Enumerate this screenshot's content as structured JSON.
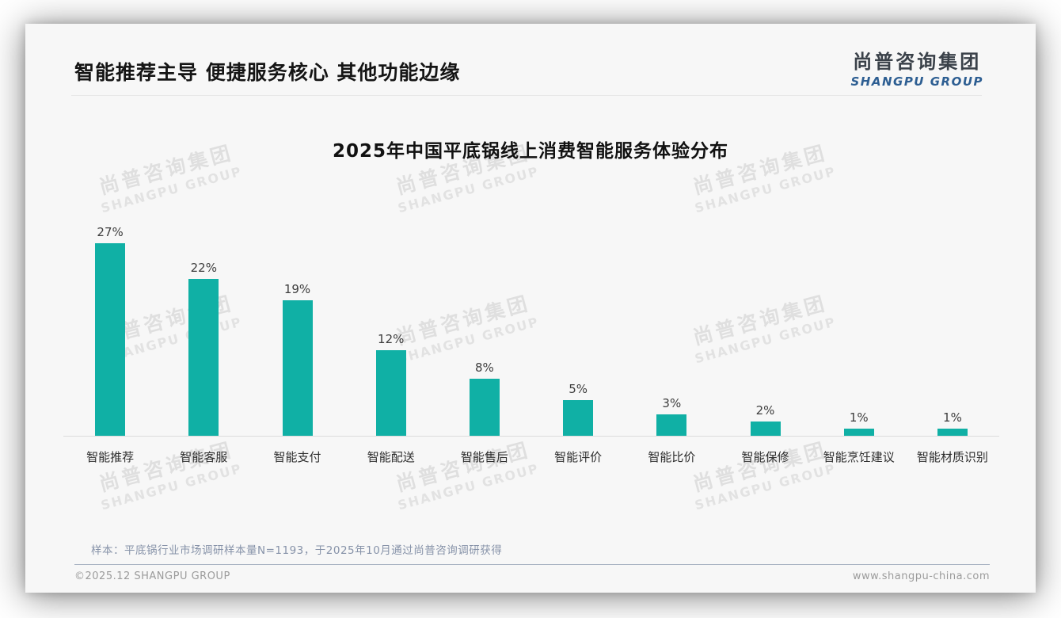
{
  "header": {
    "title": "智能推荐主导 便捷服务核心 其他功能边缘",
    "logo": {
      "cn": "尚普咨询集团",
      "en": "SHANGPU GROUP"
    }
  },
  "chart_data": {
    "type": "bar",
    "title": "2025年中国平底锅线上消费智能服务体验分布",
    "categories": [
      "智能推荐",
      "智能客服",
      "智能支付",
      "智能配送",
      "智能售后",
      "智能评价",
      "智能比价",
      "智能保修",
      "智能烹饪建议",
      "智能材质识别"
    ],
    "values": [
      27,
      22,
      19,
      12,
      8,
      5,
      3,
      2,
      1,
      1
    ],
    "value_labels": [
      "27%",
      "22%",
      "19%",
      "12%",
      "8%",
      "5%",
      "3%",
      "2%",
      "1%",
      "1%"
    ],
    "unit": "%",
    "xlabel": "",
    "ylabel": "",
    "ylim": [
      0,
      30
    ],
    "grid": false,
    "legend": false,
    "bar_color": "#10b0a5"
  },
  "watermark": {
    "cn": "尚普咨询集团",
    "en": "SHANGPU GROUP"
  },
  "footer": {
    "note": "样本：平底锅行业市场调研样本量N=1193，于2025年10月通过尚普咨询调研获得",
    "copyright": "©2025.12 SHANGPU GROUP",
    "website": "www.shangpu-china.com"
  },
  "colors": {
    "bar": "#10b0a5",
    "logo_blue": "#2d5e92",
    "note_blue": "#8793a9"
  }
}
